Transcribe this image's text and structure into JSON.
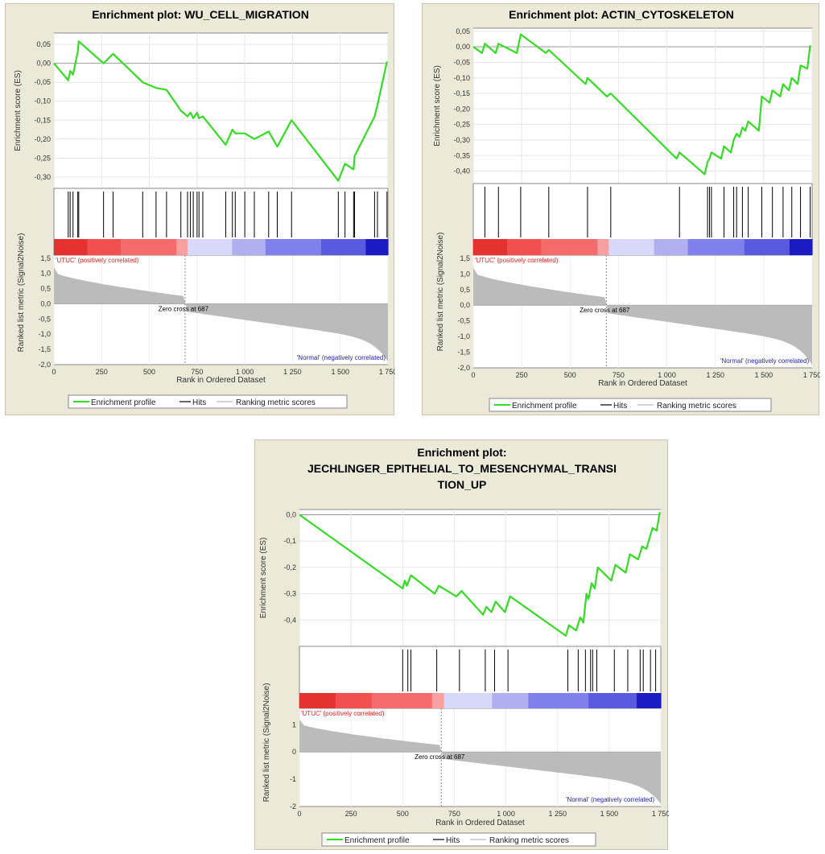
{
  "legend": {
    "profile": "Enrichment profile",
    "hits": "Hits",
    "metric": "Ranking metric scores"
  },
  "colors": {
    "profile": "#33dd22",
    "hits": "#000000",
    "metric": "#bbbbbb",
    "pos_label": "#ee2222",
    "neg_label": "#2222cc"
  },
  "chart_data": [
    {
      "type": "line",
      "title": [
        "Enrichment plot: WU_CELL_MIGRATION"
      ],
      "es_ylabel": "Enrichment score (ES)",
      "metric_ylabel": "Ranked list metric (Signal2Noise)",
      "xlabel": "Rank in Ordered Dataset",
      "pos_label": "'UTUC' (positively correlated)",
      "neg_label": "'Normal' (negatively correlated)",
      "zero_cross_label": "Zero cross at 687",
      "zero_cross": 687,
      "xlim": [
        0,
        1750
      ],
      "x_ticks": [
        0,
        250,
        500,
        750,
        1000,
        1250,
        1500,
        1750
      ],
      "x_tick_labels": [
        "0",
        "250",
        "500",
        "750",
        "1 000",
        "1 250",
        "1 500",
        "1 750"
      ],
      "es_ylim": [
        -0.33,
        0.08
      ],
      "es_ticks": [
        0.05,
        0.0,
        -0.05,
        -0.1,
        -0.15,
        -0.2,
        -0.25,
        -0.3
      ],
      "es_tick_labels": [
        "0,05",
        "0,00",
        "-0,05",
        "-0,10",
        "-0,15",
        "-0,20",
        "-0,25",
        "-0,30"
      ],
      "metric_ylim": [
        -2.0,
        1.6
      ],
      "metric_ticks": [
        1.5,
        1.0,
        0.5,
        0.0,
        -0.5,
        -1.0,
        -1.5,
        -2.0
      ],
      "metric_tick_labels": [
        "1,5",
        "1,0",
        "0,5",
        "0,0",
        "-0,5",
        "-1,0",
        "-1,5",
        "-2,0"
      ],
      "metric_start": 1.05,
      "metric_end": -1.9,
      "hits": [
        75,
        85,
        100,
        125,
        130,
        260,
        310,
        465,
        535,
        590,
        665,
        700,
        715,
        730,
        750,
        760,
        780,
        900,
        935,
        950,
        1000,
        1050,
        1125,
        1170,
        1245,
        1490,
        1525,
        1570,
        1575,
        1680,
        1695,
        1745
      ],
      "es_points": [
        [
          0,
          0.0
        ],
        [
          75,
          -0.045
        ],
        [
          85,
          -0.02
        ],
        [
          100,
          -0.03
        ],
        [
          125,
          0.03
        ],
        [
          130,
          0.058
        ],
        [
          260,
          0.0
        ],
        [
          310,
          0.025
        ],
        [
          465,
          -0.05
        ],
        [
          535,
          -0.065
        ],
        [
          590,
          -0.07
        ],
        [
          665,
          -0.125
        ],
        [
          700,
          -0.14
        ],
        [
          715,
          -0.13
        ],
        [
          730,
          -0.145
        ],
        [
          750,
          -0.13
        ],
        [
          760,
          -0.145
        ],
        [
          780,
          -0.14
        ],
        [
          900,
          -0.215
        ],
        [
          935,
          -0.175
        ],
        [
          950,
          -0.185
        ],
        [
          1000,
          -0.185
        ],
        [
          1050,
          -0.2
        ],
        [
          1125,
          -0.18
        ],
        [
          1170,
          -0.22
        ],
        [
          1245,
          -0.15
        ],
        [
          1490,
          -0.31
        ],
        [
          1525,
          -0.265
        ],
        [
          1570,
          -0.28
        ],
        [
          1575,
          -0.245
        ],
        [
          1680,
          -0.14
        ],
        [
          1695,
          -0.11
        ],
        [
          1745,
          0.005
        ]
      ]
    },
    {
      "type": "line",
      "title": [
        "Enrichment plot: ACTIN_CYTOSKELETON"
      ],
      "es_ylabel": "Enrichment score (ES)",
      "metric_ylabel": "Ranked list metric (Signal2Noise)",
      "xlabel": "Rank in Ordered Dataset",
      "pos_label": "'UTUC' (positively correlated)",
      "neg_label": "'Normal' (negatively correlated)",
      "zero_cross_label": "Zero cross at 687",
      "zero_cross": 687,
      "xlim": [
        0,
        1750
      ],
      "x_ticks": [
        0,
        250,
        500,
        750,
        1000,
        1250,
        1500,
        1750
      ],
      "x_tick_labels": [
        "0",
        "250",
        "500",
        "750",
        "1 000",
        "1 250",
        "1 500",
        "1 750"
      ],
      "es_ylim": [
        -0.44,
        0.06
      ],
      "es_ticks": [
        0.05,
        0.0,
        -0.05,
        -0.1,
        -0.15,
        -0.2,
        -0.25,
        -0.3,
        -0.35,
        -0.4
      ],
      "es_tick_labels": [
        "0,05",
        "0,00",
        "-0,05",
        "-0,10",
        "-0,15",
        "-0,20",
        "-0,25",
        "-0,30",
        "-0,35",
        "-0,40"
      ],
      "metric_ylim": [
        -2.0,
        1.6
      ],
      "metric_ticks": [
        1.5,
        1.0,
        0.5,
        0.0,
        -0.5,
        -1.0,
        -1.5,
        -2.0
      ],
      "metric_tick_labels": [
        "1,5",
        "1,0",
        "0,5",
        "0,0",
        "-0,5",
        "-1,0",
        "-1,5",
        "-2,0"
      ],
      "metric_start": 1.05,
      "metric_end": -1.9,
      "hits": [
        60,
        130,
        245,
        390,
        590,
        710,
        1065,
        1210,
        1220,
        1230,
        1295,
        1345,
        1360,
        1390,
        1420,
        1490,
        1545,
        1600,
        1645,
        1690,
        1740
      ],
      "es_points": [
        [
          0,
          0.0
        ],
        [
          45,
          -0.02
        ],
        [
          60,
          0.01
        ],
        [
          115,
          -0.02
        ],
        [
          130,
          0.01
        ],
        [
          225,
          -0.02
        ],
        [
          245,
          0.04
        ],
        [
          375,
          -0.02
        ],
        [
          390,
          -0.01
        ],
        [
          580,
          -0.12
        ],
        [
          590,
          -0.1
        ],
        [
          690,
          -0.16
        ],
        [
          710,
          -0.15
        ],
        [
          1050,
          -0.36
        ],
        [
          1065,
          -0.34
        ],
        [
          1195,
          -0.41
        ],
        [
          1210,
          -0.37
        ],
        [
          1220,
          -0.36
        ],
        [
          1230,
          -0.34
        ],
        [
          1280,
          -0.36
        ],
        [
          1295,
          -0.32
        ],
        [
          1330,
          -0.34
        ],
        [
          1345,
          -0.3
        ],
        [
          1360,
          -0.28
        ],
        [
          1375,
          -0.29
        ],
        [
          1390,
          -0.26
        ],
        [
          1405,
          -0.27
        ],
        [
          1420,
          -0.24
        ],
        [
          1475,
          -0.27
        ],
        [
          1490,
          -0.16
        ],
        [
          1530,
          -0.18
        ],
        [
          1545,
          -0.14
        ],
        [
          1585,
          -0.16
        ],
        [
          1600,
          -0.12
        ],
        [
          1630,
          -0.14
        ],
        [
          1645,
          -0.1
        ],
        [
          1675,
          -0.12
        ],
        [
          1690,
          -0.06
        ],
        [
          1725,
          -0.07
        ],
        [
          1740,
          0.005
        ]
      ]
    },
    {
      "type": "line",
      "title": [
        "Enrichment plot:",
        "JECHLINGER_EPITHELIAL_TO_MESENCHYMAL_TRANSI",
        "TION_UP"
      ],
      "es_ylabel": "Enrichment score (ES)",
      "metric_ylabel": "Ranked list metric (Signal2Noise)",
      "xlabel": "Rank in Ordered Dataset",
      "pos_label": "'UTUC' (positively correlated)",
      "neg_label": "'Normal' (negatively correlated)",
      "zero_cross_label": "Zero cross at 687",
      "zero_cross": 687,
      "xlim": [
        0,
        1750
      ],
      "x_ticks": [
        0,
        250,
        500,
        750,
        1000,
        1250,
        1500,
        1750
      ],
      "x_tick_labels": [
        "0",
        "250",
        "500",
        "750",
        "1 000",
        "1 250",
        "1 500",
        "1 750"
      ],
      "es_ylim": [
        -0.5,
        0.02
      ],
      "es_ticks": [
        0.0,
        -0.1,
        -0.2,
        -0.3,
        -0.4
      ],
      "es_tick_labels": [
        "0,0",
        "-0,1",
        "-0,2",
        "-0,3",
        "-0,4"
      ],
      "metric_ylim": [
        -2.0,
        1.6
      ],
      "metric_ticks": [
        1,
        0,
        -1,
        -2
      ],
      "metric_tick_labels": [
        "1",
        "0",
        "-1",
        "-2"
      ],
      "metric_start": 1.05,
      "metric_end": -1.9,
      "hits": [
        500,
        525,
        540,
        665,
        775,
        900,
        945,
        1010,
        1300,
        1350,
        1385,
        1410,
        1420,
        1440,
        1525,
        1590,
        1650,
        1665,
        1700,
        1725
      ],
      "es_points": [
        [
          0,
          0.0
        ],
        [
          500,
          -0.28
        ],
        [
          510,
          -0.25
        ],
        [
          520,
          -0.27
        ],
        [
          540,
          -0.23
        ],
        [
          655,
          -0.3
        ],
        [
          675,
          -0.27
        ],
        [
          760,
          -0.31
        ],
        [
          785,
          -0.29
        ],
        [
          890,
          -0.38
        ],
        [
          905,
          -0.35
        ],
        [
          930,
          -0.37
        ],
        [
          950,
          -0.33
        ],
        [
          995,
          -0.37
        ],
        [
          1020,
          -0.31
        ],
        [
          1290,
          -0.46
        ],
        [
          1305,
          -0.42
        ],
        [
          1340,
          -0.44
        ],
        [
          1360,
          -0.39
        ],
        [
          1375,
          -0.41
        ],
        [
          1390,
          -0.3
        ],
        [
          1400,
          -0.32
        ],
        [
          1415,
          -0.26
        ],
        [
          1430,
          -0.28
        ],
        [
          1445,
          -0.2
        ],
        [
          1510,
          -0.25
        ],
        [
          1530,
          -0.19
        ],
        [
          1580,
          -0.22
        ],
        [
          1600,
          -0.15
        ],
        [
          1640,
          -0.17
        ],
        [
          1660,
          -0.12
        ],
        [
          1680,
          -0.13
        ],
        [
          1710,
          -0.05
        ],
        [
          1730,
          -0.06
        ],
        [
          1745,
          0.01
        ]
      ]
    }
  ]
}
